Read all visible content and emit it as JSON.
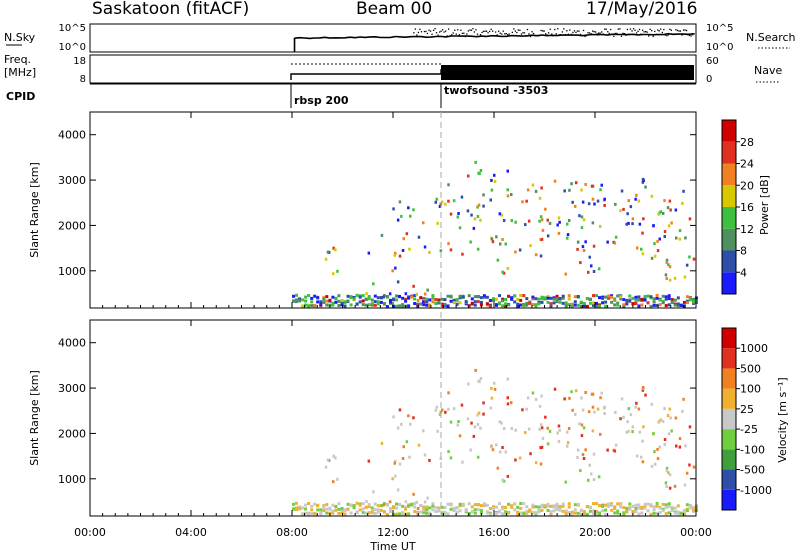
{
  "header": {
    "station": "Saskatoon (fitACF)",
    "beam": "Beam 00",
    "date": "17/May/2016"
  },
  "strips": {
    "nsky_label": "N.Sky",
    "nsky_ticks": [
      "10^5",
      "10^0"
    ],
    "nsearch_label": "N.Search",
    "nsearch_ticks": [
      "10^5",
      "10^0"
    ],
    "freq_label": "Freq.",
    "freq_unit": "[MHz]",
    "freq_ticks": [
      "18",
      "8"
    ],
    "nave_label": "Nave",
    "nave_ticks": [
      "60",
      "0"
    ],
    "cpid_label": "CPID",
    "cpid_modes": [
      "rbsp 200",
      "twofsound -3503"
    ]
  },
  "colors": {
    "power": [
      "#1a1aff",
      "#2d4fa8",
      "#4f8f60",
      "#3fbf3f",
      "#d8c800",
      "#f08020",
      "#e03020",
      "#d00000"
    ],
    "velocity": [
      "#d00000",
      "#e03020",
      "#f08020",
      "#f0b030",
      "#c8c8c8",
      "#6fcf3f",
      "#3f9f3f",
      "#2d4fa8",
      "#1a1aff"
    ]
  },
  "chart_data": [
    {
      "type": "heatmap",
      "name": "power",
      "ylabel": "Slant Range [km]",
      "yticks": [
        "1000",
        "2000",
        "3000",
        "4000"
      ],
      "ylim": [
        180,
        4500
      ],
      "xlim": [
        "00:00",
        "24:00"
      ],
      "colorbar_label": "Power [dB]",
      "colorbar_ticks": [
        "4",
        "8",
        "12",
        "16",
        "20",
        "24",
        "28"
      ],
      "colorbar_range": [
        0,
        30
      ]
    },
    {
      "type": "heatmap",
      "name": "velocity",
      "ylabel": "Slant Range [km]",
      "yticks": [
        "1000",
        "2000",
        "3000",
        "4000"
      ],
      "ylim": [
        180,
        4500
      ],
      "xlim": [
        "00:00",
        "24:00"
      ],
      "xlabel": "Time UT",
      "xticks": [
        "00:00",
        "04:00",
        "08:00",
        "12:00",
        "16:00",
        "20:00",
        "00:00"
      ],
      "colorbar_label": "Velocity [m s⁻¹]",
      "colorbar_ticks": [
        "1000",
        "500",
        "100",
        "25",
        "-25",
        "-100",
        "-500",
        "-1000"
      ]
    }
  ]
}
